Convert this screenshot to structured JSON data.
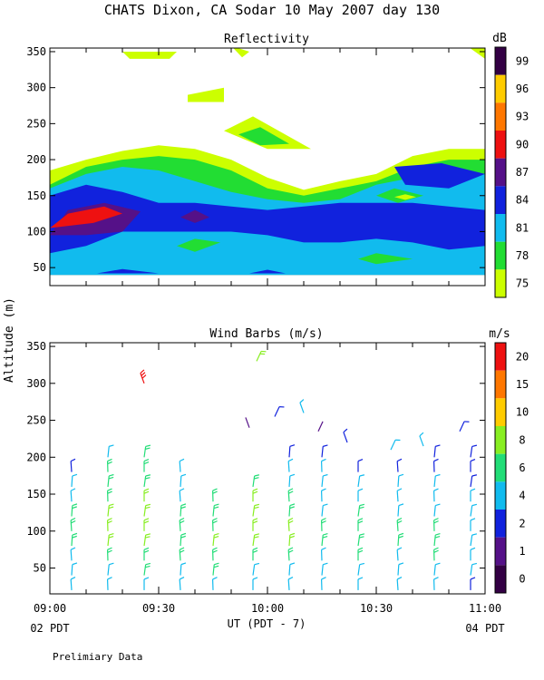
{
  "figure": {
    "title": "CHATS Dixon, CA  Sodar  10 May 2007  day 130",
    "shared_ylabel": "Altitude (m)",
    "xlabel": "UT  (PDT - 7)",
    "x_start_note": "02 PDT",
    "x_end_note": "04 PDT",
    "footer": "Prelimiary Data"
  },
  "chart_data": [
    {
      "type": "heatmap",
      "title": "Reflectivity",
      "colorbar_title": "dB",
      "colorbar_ticks": [
        "75",
        "78",
        "81",
        "84",
        "87",
        "90",
        "93",
        "96",
        "99"
      ],
      "colorbar_colors": [
        "#ccff00",
        "#22dd33",
        "#11bbee",
        "#1122dd",
        "#551188",
        "#ee1111",
        "#ff7700",
        "#ffcc00",
        "#330044"
      ],
      "x_ticks": [
        "09:00",
        "09:30",
        "10:00",
        "10:30",
        "11:00"
      ],
      "x_minutes": [
        0,
        120
      ],
      "y_ticks": [
        50,
        100,
        150,
        200,
        250,
        300,
        350
      ],
      "ylim": [
        25,
        355
      ],
      "data_region_m": [
        40,
        355
      ],
      "layers": [
        {
          "value": 75,
          "poly": [
            [
              0,
              185
            ],
            [
              10,
              200
            ],
            [
              20,
              212
            ],
            [
              30,
              220
            ],
            [
              40,
              215
            ],
            [
              50,
              200
            ],
            [
              60,
              175
            ],
            [
              70,
              158
            ],
            [
              80,
              170
            ],
            [
              90,
              180
            ],
            [
              100,
              205
            ],
            [
              110,
              215
            ],
            [
              120,
              215
            ],
            [
              120,
              40
            ],
            [
              0,
              40
            ]
          ]
        },
        {
          "value": 78,
          "poly": [
            [
              0,
              165
            ],
            [
              10,
              190
            ],
            [
              20,
              200
            ],
            [
              30,
              205
            ],
            [
              40,
              200
            ],
            [
              50,
              185
            ],
            [
              60,
              160
            ],
            [
              70,
              150
            ],
            [
              80,
              160
            ],
            [
              90,
              170
            ],
            [
              100,
              190
            ],
            [
              110,
              200
            ],
            [
              120,
              200
            ],
            [
              120,
              40
            ],
            [
              0,
              40
            ]
          ]
        },
        {
          "value": 81,
          "poly": [
            [
              0,
              160
            ],
            [
              10,
              180
            ],
            [
              20,
              190
            ],
            [
              30,
              185
            ],
            [
              40,
              170
            ],
            [
              50,
              155
            ],
            [
              60,
              145
            ],
            [
              70,
              140
            ],
            [
              80,
              145
            ],
            [
              90,
              165
            ],
            [
              100,
              175
            ],
            [
              110,
              185
            ],
            [
              120,
              180
            ],
            [
              120,
              40
            ],
            [
              0,
              40
            ]
          ]
        },
        {
          "value": 84,
          "poly": [
            [
              0,
              150
            ],
            [
              10,
              165
            ],
            [
              20,
              155
            ],
            [
              30,
              140
            ],
            [
              40,
              140
            ],
            [
              50,
              135
            ],
            [
              60,
              130
            ],
            [
              70,
              135
            ],
            [
              80,
              140
            ],
            [
              90,
              140
            ],
            [
              100,
              140
            ],
            [
              110,
              135
            ],
            [
              120,
              130
            ],
            [
              120,
              40
            ],
            [
              0,
              40
            ]
          ]
        },
        {
          "value": 81,
          "poly": [
            [
              0,
              70
            ],
            [
              10,
              80
            ],
            [
              20,
              100
            ],
            [
              30,
              100
            ],
            [
              40,
              100
            ],
            [
              50,
              100
            ],
            [
              60,
              95
            ],
            [
              70,
              85
            ],
            [
              80,
              85
            ],
            [
              90,
              90
            ],
            [
              100,
              85
            ],
            [
              110,
              75
            ],
            [
              120,
              80
            ],
            [
              120,
              40
            ],
            [
              0,
              40
            ]
          ]
        },
        {
          "value": 87,
          "poly": [
            [
              0,
              95
            ],
            [
              5,
              130
            ],
            [
              15,
              140
            ],
            [
              25,
              128
            ],
            [
              20,
              100
            ],
            [
              10,
              95
            ]
          ]
        },
        {
          "value": 90,
          "poly": [
            [
              0,
              105
            ],
            [
              5,
              125
            ],
            [
              15,
              135
            ],
            [
              20,
              125
            ],
            [
              12,
              112
            ]
          ]
        },
        {
          "value": 87,
          "poly": [
            [
              36,
              120
            ],
            [
              40,
              130
            ],
            [
              44,
              120
            ],
            [
              40,
              112
            ]
          ]
        },
        {
          "value": 84,
          "poly": [
            [
              95,
              190
            ],
            [
              108,
              195
            ],
            [
              120,
              180
            ],
            [
              110,
              160
            ],
            [
              98,
              165
            ]
          ]
        },
        {
          "value": 78,
          "poly": [
            [
              90,
              150
            ],
            [
              95,
              160
            ],
            [
              103,
              150
            ],
            [
              96,
              140
            ]
          ]
        },
        {
          "value": 75,
          "poly": [
            [
              95,
              148
            ],
            [
              98,
              152
            ],
            [
              101,
              148
            ],
            [
              98,
              144
            ]
          ]
        },
        {
          "value": 78,
          "poly": [
            [
              35,
              80
            ],
            [
              40,
              90
            ],
            [
              47,
              85
            ],
            [
              40,
              72
            ]
          ]
        },
        {
          "value": 78,
          "poly": [
            [
              85,
              62
            ],
            [
              90,
              70
            ],
            [
              100,
              62
            ],
            [
              90,
              55
            ]
          ]
        },
        {
          "value": 84,
          "poly": [
            [
              13,
              42
            ],
            [
              20,
              48
            ],
            [
              30,
              42
            ]
          ]
        },
        {
          "value": 84,
          "poly": [
            [
              55,
              42
            ],
            [
              60,
              47
            ],
            [
              65,
              42
            ]
          ]
        },
        {
          "value": 75,
          "poly": [
            [
              48,
              240
            ],
            [
              56,
              260
            ],
            [
              72,
              215
            ],
            [
              60,
              215
            ]
          ]
        },
        {
          "value": 78,
          "poly": [
            [
              52,
              235
            ],
            [
              58,
              245
            ],
            [
              66,
              222
            ],
            [
              58,
              220
            ]
          ]
        },
        {
          "value": 75,
          "poly": [
            [
              20,
              350
            ],
            [
              35,
              350
            ],
            [
              33,
              340
            ],
            [
              22,
              340
            ]
          ]
        },
        {
          "value": 75,
          "poly": [
            [
              38,
              290
            ],
            [
              48,
              300
            ],
            [
              48,
              280
            ],
            [
              38,
              280
            ]
          ]
        },
        {
          "value": 75,
          "poly": [
            [
              50,
              358
            ],
            [
              53,
              342
            ],
            [
              55,
              350
            ]
          ]
        },
        {
          "value": 75,
          "poly": [
            [
              115,
              358
            ],
            [
              120,
              340
            ],
            [
              120,
              358
            ]
          ]
        }
      ]
    },
    {
      "type": "scatter",
      "title": "Wind Barbs (m/s)",
      "colorbar_title": "m/s",
      "colorbar_ticks": [
        "0",
        "1",
        "2",
        "4",
        "6",
        "8",
        "10",
        "15",
        "20"
      ],
      "colorbar_colors": [
        "#330044",
        "#551188",
        "#1122dd",
        "#11bbee",
        "#22dd77",
        "#88ee22",
        "#ffcc00",
        "#ff7700",
        "#ee1111"
      ],
      "x_ticks": [
        "09:00",
        "09:30",
        "10:00",
        "10:30",
        "11:00"
      ],
      "y_ticks": [
        50,
        100,
        150,
        200,
        250,
        300,
        350
      ],
      "ylim": [
        15,
        355
      ],
      "columns_minutes": [
        6,
        16,
        26,
        36,
        45,
        56,
        66,
        75,
        85,
        96,
        106,
        116
      ],
      "heights_m": [
        20,
        40,
        60,
        80,
        100,
        120,
        140,
        160,
        180,
        200
      ],
      "column_top_m": [
        180,
        200,
        200,
        180,
        140,
        160,
        200,
        200,
        180,
        180,
        200,
        200
      ],
      "profiles": [
        {
          "min": 6,
          "speeds": [
            4,
            5,
            5,
            6,
            6,
            6,
            5,
            4,
            3,
            0
          ]
        },
        {
          "min": 16,
          "speeds": [
            4,
            5,
            6,
            8,
            8,
            8,
            7,
            6,
            6,
            5
          ]
        },
        {
          "min": 26,
          "speeds": [
            5,
            6,
            7,
            8,
            9,
            9,
            8,
            7,
            6,
            6
          ]
        },
        {
          "min": 36,
          "speeds": [
            4,
            5,
            6,
            7,
            7,
            6,
            5,
            5,
            4,
            0
          ]
        },
        {
          "min": 45,
          "speeds": [
            5,
            6,
            7,
            8,
            7,
            6,
            6,
            0,
            0,
            0
          ]
        },
        {
          "min": 56,
          "speeds": [
            4,
            5,
            6,
            8,
            9,
            9,
            8,
            7,
            6,
            0
          ]
        },
        {
          "min": 66,
          "speeds": [
            4,
            5,
            6,
            8,
            8,
            7,
            6,
            5,
            4,
            3
          ]
        },
        {
          "min": 75,
          "speeds": [
            4,
            5,
            5,
            6,
            6,
            5,
            5,
            4,
            4,
            3
          ]
        },
        {
          "min": 85,
          "speeds": [
            4,
            5,
            6,
            7,
            7,
            6,
            5,
            4,
            3,
            2
          ]
        },
        {
          "min": 96,
          "speeds": [
            4,
            5,
            5,
            6,
            6,
            5,
            4,
            4,
            3,
            3
          ]
        },
        {
          "min": 106,
          "speeds": [
            4,
            5,
            6,
            6,
            6,
            5,
            4,
            4,
            3,
            3
          ]
        },
        {
          "min": 116,
          "speeds": [
            3,
            4,
            4,
            5,
            5,
            4,
            4,
            3,
            3,
            2
          ]
        }
      ],
      "extra_barbs": [
        {
          "min": 26,
          "alt": 300,
          "speed": 20
        },
        {
          "min": 57,
          "alt": 330,
          "speed": 9
        },
        {
          "min": 55,
          "alt": 240,
          "speed": 1
        },
        {
          "min": 62,
          "alt": 255,
          "speed": 2
        },
        {
          "min": 70,
          "alt": 260,
          "speed": 4
        },
        {
          "min": 74,
          "alt": 235,
          "speed": 1
        },
        {
          "min": 82,
          "alt": 220,
          "speed": 2
        },
        {
          "min": 94,
          "alt": 210,
          "speed": 5
        },
        {
          "min": 103,
          "alt": 215,
          "speed": 5
        },
        {
          "min": 113,
          "alt": 235,
          "speed": 3
        }
      ]
    }
  ]
}
